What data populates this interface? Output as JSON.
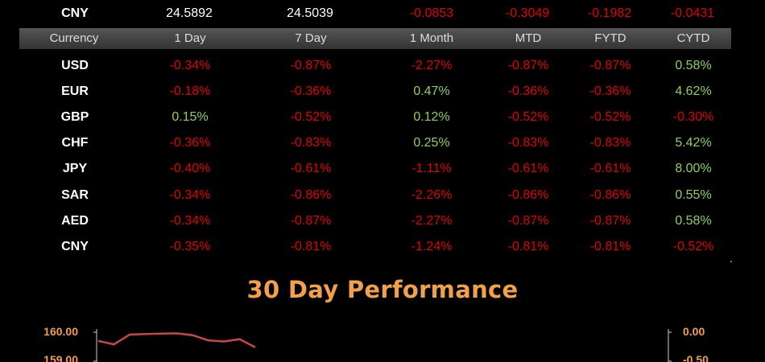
{
  "top_row": {
    "currency": "CNY",
    "values": [
      "24.5892",
      "24.5039",
      "-0.0853",
      "-0.3049",
      "-0.1982",
      "-0.0431"
    ]
  },
  "header": {
    "currency_label": "Currency",
    "columns": [
      "1 Day",
      "7 Day",
      "1 Month",
      "MTD",
      "FYTD",
      "CYTD"
    ]
  },
  "rows": [
    {
      "currency": "USD",
      "values": [
        "-0.34%",
        "-0.87%",
        "-2.27%",
        "-0.87%",
        "-0.87%",
        "0.58%"
      ]
    },
    {
      "currency": "EUR",
      "values": [
        "-0.18%",
        "-0.36%",
        "0.47%",
        "-0.36%",
        "-0.36%",
        "4.62%"
      ]
    },
    {
      "currency": "GBP",
      "values": [
        "0.15%",
        "-0.52%",
        "0.12%",
        "-0.52%",
        "-0.52%",
        "-0.30%"
      ]
    },
    {
      "currency": "CHF",
      "values": [
        "-0.36%",
        "-0.83%",
        "0.25%",
        "-0.83%",
        "-0.83%",
        "5.42%"
      ]
    },
    {
      "currency": "JPY",
      "values": [
        "-0.40%",
        "-0.61%",
        "-1.11%",
        "-0.61%",
        "-0.61%",
        "8.00%"
      ]
    },
    {
      "currency": "SAR",
      "values": [
        "-0.34%",
        "-0.86%",
        "-2.26%",
        "-0.86%",
        "-0.86%",
        "0.55%"
      ]
    },
    {
      "currency": "AED",
      "values": [
        "-0.34%",
        "-0.87%",
        "-2.27%",
        "-0.87%",
        "-0.87%",
        "0.58%"
      ]
    },
    {
      "currency": "CNY",
      "values": [
        "-0.35%",
        "-0.81%",
        "-1.24%",
        "-0.81%",
        "-0.81%",
        "-0.52%"
      ]
    }
  ],
  "colors": {
    "negative": "#e00000",
    "positive": "#8fd05a",
    "title": "#f2a04a",
    "line": "#c8484a",
    "axis": "#cccccc"
  },
  "chart_title": "30 Day Performance",
  "chart_data": {
    "type": "line",
    "title": "30 Day Performance",
    "y_left_ticks": [
      "160.00",
      "159.00"
    ],
    "y_right_ticks": [
      "0.00",
      "-0.50"
    ],
    "y_left_range": [
      159.0,
      160.0
    ],
    "series": [
      {
        "values": [
          159.7,
          159.58,
          159.92,
          159.94,
          159.95,
          159.96,
          159.9,
          159.72,
          159.68,
          159.76,
          159.48
        ]
      }
    ]
  }
}
